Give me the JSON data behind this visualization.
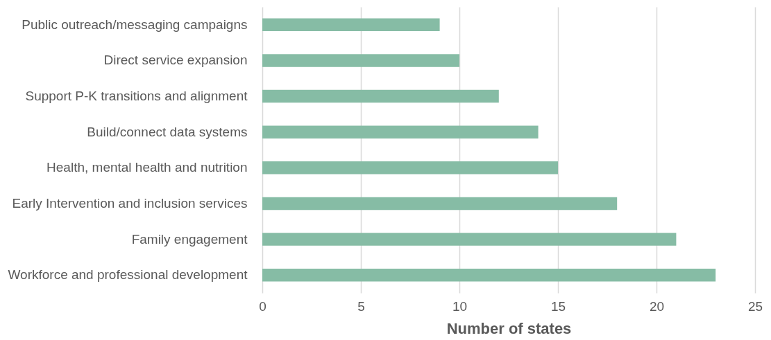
{
  "chart_data": {
    "type": "bar",
    "orientation": "horizontal",
    "xlabel": "Number of states",
    "categories": [
      "Public outreach/messaging campaigns",
      "Direct service expansion",
      "Support P-K transitions and alignment",
      "Build/connect data systems",
      "Health, mental health and nutrition",
      "Early Intervention and inclusion services",
      "Family engagement",
      "Workforce and professional development"
    ],
    "values": [
      9,
      10,
      12,
      14,
      15,
      18,
      21,
      23
    ],
    "color": "#86bca5",
    "xlim": [
      0,
      25
    ],
    "xticks": [
      0,
      5,
      10,
      15,
      20,
      25
    ],
    "grid": "x"
  }
}
